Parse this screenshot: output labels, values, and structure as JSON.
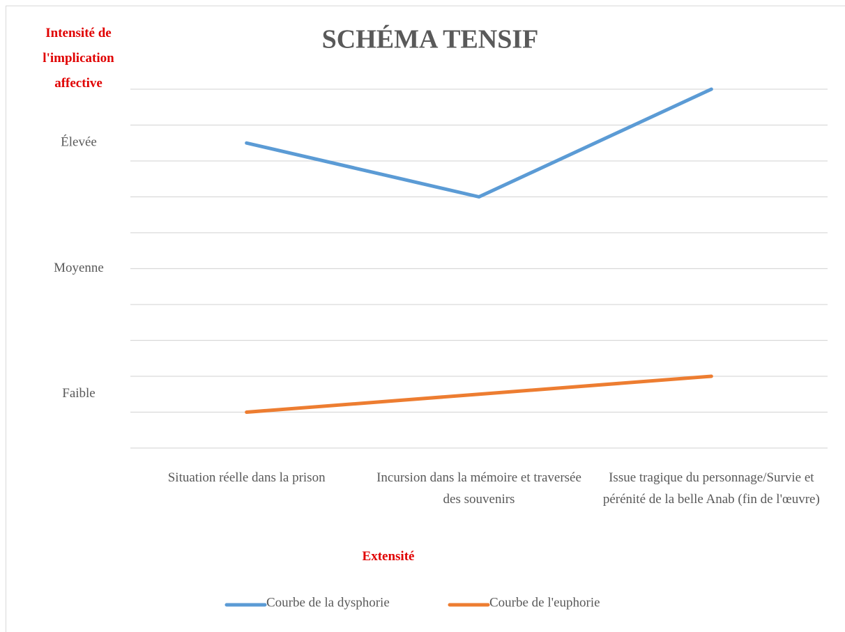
{
  "chart_data": {
    "type": "line",
    "title": "SCHÉMA TENSIF",
    "y_axis_label": "Intensité de l'implication affective",
    "x_axis_label": "Extensité",
    "categories": [
      "Situation réelle dans la prison",
      "Incursion dans la mémoire et traversée des souvenirs",
      "Issue tragique du personnage/Survie et pérénité de la belle Anab (fin de l'œuvre)"
    ],
    "series": [
      {
        "name": "Courbe de la dysphorie",
        "color": "#5b9bd5",
        "values": [
          8.5,
          7,
          10
        ]
      },
      {
        "name": "Courbe de l'euphorie",
        "color": "#ed7d31",
        "values": [
          1,
          1.5,
          2
        ]
      }
    ],
    "ylim": [
      0,
      10
    ],
    "ygrid": [
      0,
      1,
      2,
      3,
      4,
      5,
      6,
      7,
      8,
      9,
      10
    ],
    "yticks": [
      {
        "value": 8.5,
        "label": "Élevée"
      },
      {
        "value": 5,
        "label": "Moyenne"
      },
      {
        "value": 1.5,
        "label": "Faible"
      }
    ],
    "grid": true,
    "legend": "bottom"
  }
}
